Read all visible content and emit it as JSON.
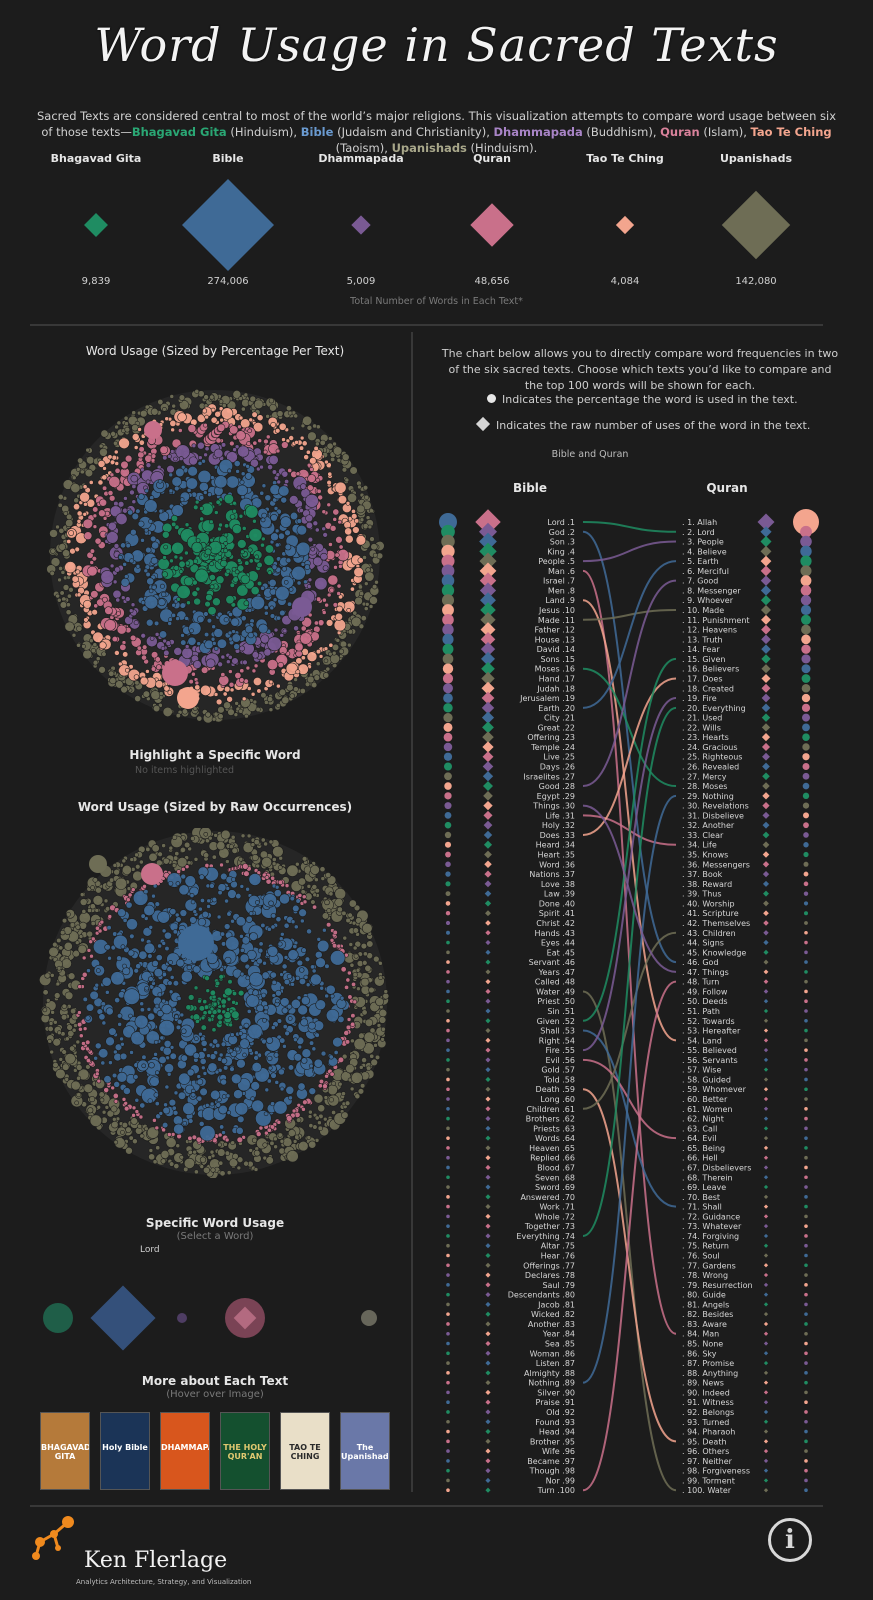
{
  "header": {
    "title": "Word Usage in Sacred Texts",
    "intro_prefix": "Sacred Texts are considered central to most of the world’s major religions. This visualization attempts to compare word usage between six of those texts—",
    "intro_gita": "Bhagavad Gita",
    "intro_gita_rel": " (Hinduism), ",
    "intro_bible": "Bible",
    "intro_bible_rel": " (Judaism and Christianity), ",
    "intro_dhamma": "Dhammapada",
    "intro_dhamma_rel": " (Buddhism), ",
    "intro_quran": "Quran",
    "intro_quran_rel": " (Islam), ",
    "intro_tao": "Tao Te Ching",
    "intro_tao_rel": " (Taoism), ",
    "intro_upan": "Upanishads",
    "intro_upan_rel": " (Hinduism)."
  },
  "colors": {
    "gita": "#1f8c62",
    "bible": "#3f6a96",
    "dhamma": "#7a5a94",
    "quran": "#c9708a",
    "tao": "#f3a58e",
    "upan": "#6e6d55",
    "background": "#1c1c1c"
  },
  "totals": {
    "caption": "Total Number of Words in Each Text*",
    "chart_data": {
      "type": "bar",
      "title": "Total Number of Words in Each Text*",
      "categories": [
        "Bhagavad Gita",
        "Bible",
        "Dhammapada",
        "Quran",
        "Tao Te Ching",
        "Upanishads"
      ],
      "values": [
        9839,
        274006,
        5009,
        48656,
        4084,
        142080
      ],
      "value_labels": [
        "9,839",
        "274,006",
        "5,009",
        "48,656",
        "4,084",
        "142,080"
      ]
    }
  },
  "left": {
    "pct_title": "Word Usage (Sized by Percentage Per Text)",
    "highlight_title": "Highlight a Specific Word",
    "highlight_hint": "No items highlighted",
    "raw_title": "Word Usage (Sized by Raw Occurrences)",
    "specific_title": "Specific Word Usage",
    "specific_sub": "(Select a Word)",
    "specific_word": "Lord",
    "more_title": "More about Each Text",
    "more_sub": "(Hover over Image)",
    "books": [
      "BHAGAVAD GITA",
      "Holy Bible",
      "DHAMMAPADA",
      "THE HOLY QUR'AN",
      "TAO TE CHING",
      "The Upanishads"
    ]
  },
  "compare": {
    "desc": "The chart below allows you to directly compare word frequencies in two of the six sacred texts. Choose which texts you’d like to compare and the top 100 words will be shown for each.",
    "legend_circle": "Indicates the percentage the word is used in the text.",
    "legend_diamond": "Indicates the raw number of uses of the word in the text.",
    "selector": "Bible and Quran",
    "left_header": "Bible",
    "right_header": "Quran",
    "chart_data": {
      "type": "table",
      "title": "Top 100 words: Bible vs Quran",
      "bible": [
        "Lord",
        "God",
        "Son",
        "King",
        "People",
        "Man",
        "Israel",
        "Men",
        "Land",
        "Jesus",
        "Made",
        "Father",
        "House",
        "David",
        "Sons",
        "Moses",
        "Hand",
        "Judah",
        "Jerusalem",
        "Earth",
        "City",
        "Great",
        "Offering",
        "Temple",
        "Live",
        "Days",
        "Israelites",
        "Good",
        "Egypt",
        "Things",
        "Life",
        "Holy",
        "Does",
        "Heard",
        "Heart",
        "Word",
        "Nations",
        "Love",
        "Law",
        "Done",
        "Spirit",
        "Christ",
        "Hands",
        "Eyes",
        "Eat",
        "Servant",
        "Years",
        "Called",
        "Water",
        "Priest",
        "Sin",
        "Given",
        "Shall",
        "Right",
        "Fire",
        "Evil",
        "Gold",
        "Told",
        "Death",
        "Long",
        "Children",
        "Brothers",
        "Priests",
        "Words",
        "Heaven",
        "Replied",
        "Blood",
        "Seven",
        "Sword",
        "Answered",
        "Work",
        "Whole",
        "Together",
        "Everything",
        "Altar",
        "Hear",
        "Offerings",
        "Declares",
        "Saul",
        "Descendants",
        "Jacob",
        "Wicked",
        "Another",
        "Year",
        "Sea",
        "Woman",
        "Listen",
        "Almighty",
        "Nothing",
        "Silver",
        "Praise",
        "Old",
        "Found",
        "Head",
        "Brother",
        "Wife",
        "Became",
        "Though",
        "Nor",
        "Turn"
      ],
      "quran": [
        "Allah",
        "Lord",
        "People",
        "Believe",
        "Earth",
        "Merciful",
        "Good",
        "Messenger",
        "Whoever",
        "Made",
        "Punishment",
        "Heavens",
        "Truth",
        "Fear",
        "Given",
        "Believers",
        "Does",
        "Created",
        "Fire",
        "Everything",
        "Used",
        "Wills",
        "Hearts",
        "Gracious",
        "Righteous",
        "Revealed",
        "Mercy",
        "Moses",
        "Nothing",
        "Revelations",
        "Disbelieve",
        "Another",
        "Clear",
        "Life",
        "Knows",
        "Messengers",
        "Book",
        "Reward",
        "Thus",
        "Worship",
        "Scripture",
        "Themselves",
        "Children",
        "Signs",
        "Knowledge",
        "God",
        "Things",
        "Turn",
        "Follow",
        "Deeds",
        "Path",
        "Towards",
        "Hereafter",
        "Land",
        "Believed",
        "Servants",
        "Wise",
        "Guided",
        "Whomever",
        "Better",
        "Women",
        "Night",
        "Call",
        "Evil",
        "Being",
        "Hell",
        "Disbelievers",
        "Therein",
        "Leave",
        "Best",
        "Shall",
        "Guidance",
        "Whatever",
        "Forgiving",
        "Return",
        "Soul",
        "Gardens",
        "Wrong",
        "Resurrection",
        "Guide",
        "Angels",
        "Besides",
        "Aware",
        "Man",
        "None",
        "Sky",
        "Promise",
        "Anything",
        "News",
        "Indeed",
        "Witness",
        "Belongs",
        "Turned",
        "Pharaoh",
        "Death",
        "Others",
        "Neither",
        "Forgiveness",
        "Torment",
        "Water"
      ],
      "links": [
        [
          1,
          2
        ],
        [
          2,
          46
        ],
        [
          5,
          3
        ],
        [
          6,
          84
        ],
        [
          9,
          54
        ],
        [
          11,
          10
        ],
        [
          16,
          28
        ],
        [
          20,
          5
        ],
        [
          28,
          7
        ],
        [
          31,
          34
        ],
        [
          33,
          17
        ],
        [
          49,
          100
        ],
        [
          52,
          15
        ],
        [
          53,
          71
        ],
        [
          55,
          19
        ],
        [
          56,
          64
        ],
        [
          59,
          95
        ],
        [
          61,
          43
        ],
        [
          74,
          20
        ],
        [
          89,
          29
        ],
        [
          30,
          47
        ],
        [
          100,
          48
        ]
      ]
    }
  },
  "footer": {
    "name": "Ken Flerlage",
    "tagline": "Analytics Architecture, Strategy, and Visualization",
    "info": "i"
  }
}
